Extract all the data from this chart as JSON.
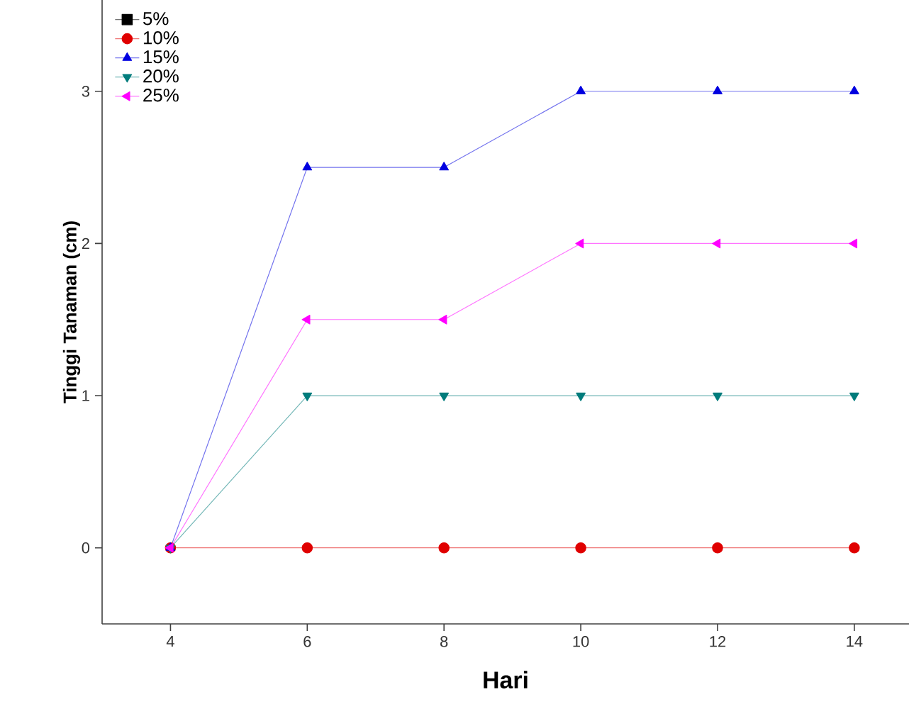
{
  "chart_data": {
    "type": "line",
    "xlabel": "Hari",
    "ylabel": "Tinggi Tanaman (cm)",
    "x": [
      4,
      6,
      8,
      10,
      12,
      14
    ],
    "series": [
      {
        "name": "5%",
        "color": "#000000",
        "marker": "square",
        "values": [
          null,
          null,
          null,
          null,
          null,
          null
        ]
      },
      {
        "name": "10%",
        "color": "#e00000",
        "marker": "circle",
        "values": [
          0,
          0,
          0,
          0,
          0,
          0
        ]
      },
      {
        "name": "15%",
        "color": "#0000e0",
        "marker": "triangle",
        "values": [
          0,
          2.5,
          2.5,
          3,
          3,
          3
        ]
      },
      {
        "name": "20%",
        "color": "#007c7c",
        "marker": "triangle down",
        "values": [
          0,
          1,
          1,
          1,
          1,
          1
        ]
      },
      {
        "name": "25%",
        "color": "#ff00ff",
        "marker": "triangle left",
        "values": [
          0,
          1.5,
          1.5,
          2,
          2,
          2
        ]
      }
    ],
    "xlim": [
      3,
      14.8
    ],
    "ylim": [
      -0.5,
      3.6
    ],
    "xticks": [
      4,
      6,
      8,
      10,
      12,
      14
    ],
    "yticks": [
      0,
      1,
      2,
      3
    ],
    "grid": false,
    "legend": "top left",
    "line_style": "solid"
  }
}
